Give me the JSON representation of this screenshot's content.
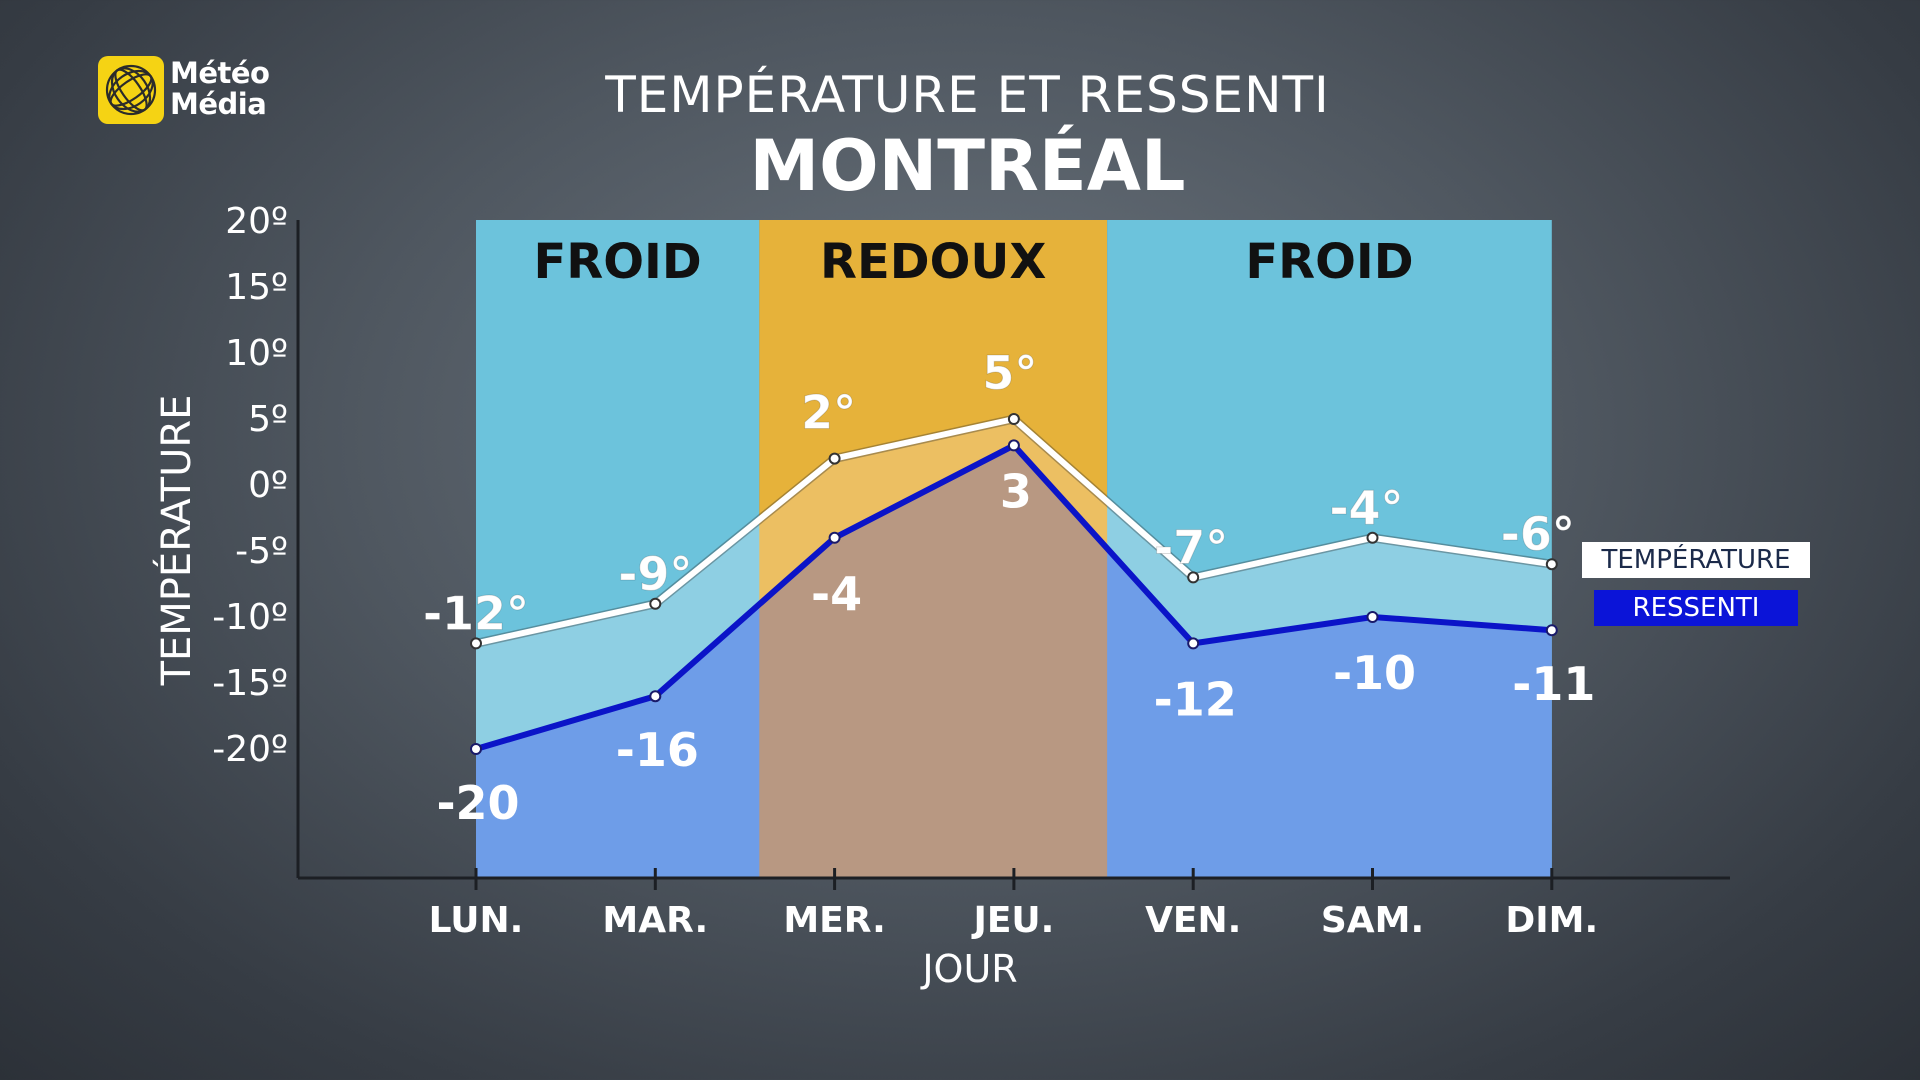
{
  "header": {
    "logo_line1": "Météo",
    "logo_line2": "Média",
    "title": "TEMPÉRATURE ET RESSENTI",
    "city": "MONTRÉAL"
  },
  "legend": {
    "temperature": "TEMPÉRATURE",
    "ressenti": "RESSENTI"
  },
  "colors": {
    "froid_band": "#6cc3dc",
    "redoux_band": "#e6b23a",
    "area_between": "#8ecfe3",
    "area_between_redoux": "#ecbf62",
    "area_below": "#6e9de8",
    "area_below_redoux": "#b89882",
    "temperature_line": "#ffffff",
    "ressenti_line": "#0b14c8",
    "logo_yellow": "#f5d314"
  },
  "chart_data": {
    "type": "line",
    "title": "TEMPÉRATURE ET RESSENTI",
    "subtitle": "MONTRÉAL",
    "xlabel": "JOUR",
    "ylabel": "TEMPÉRATURE",
    "categories": [
      "LUN.",
      "MAR.",
      "MER.",
      "JEU.",
      "VEN.",
      "SAM.",
      "DIM."
    ],
    "ylim": [
      -30,
      20
    ],
    "yticks": [
      20,
      15,
      10,
      5,
      0,
      -5,
      -10,
      -15,
      -20
    ],
    "ytick_labels": [
      "20º",
      "15º",
      "10º",
      "5º",
      "0º",
      "-5º",
      "-10º",
      "-15º",
      "-20º"
    ],
    "series": [
      {
        "name": "TEMPÉRATURE",
        "values": [
          -12,
          -9,
          2,
          5,
          -7,
          -4,
          -6
        ],
        "labels": [
          "-12°",
          "-9°",
          "2°",
          "5°",
          "-7°",
          "-4°",
          "-6°"
        ]
      },
      {
        "name": "RESSENTI",
        "values": [
          -20,
          -16,
          -4,
          3,
          -12,
          -10,
          -11
        ],
        "labels": [
          "-20",
          "-16",
          "-4",
          "3",
          "-12",
          "-10",
          "-11"
        ]
      }
    ],
    "bands": [
      {
        "label": "FROID",
        "from_index": 0,
        "to_index": 1.58,
        "kind": "froid"
      },
      {
        "label": "REDOUX",
        "from_index": 1.58,
        "to_index": 3.52,
        "kind": "redoux"
      },
      {
        "label": "FROID",
        "from_index": 3.52,
        "to_index": 6,
        "kind": "froid"
      }
    ],
    "legend_position": "right",
    "grid": false
  }
}
